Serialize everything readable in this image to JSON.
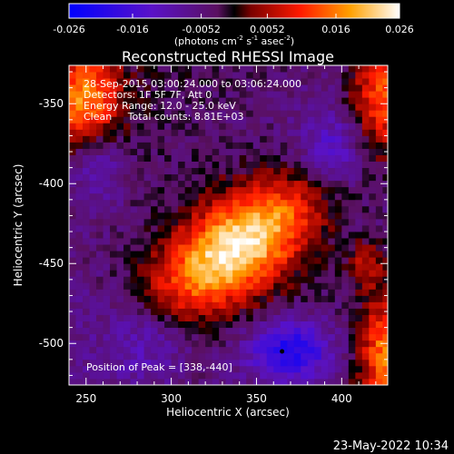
{
  "chart_data": {
    "type": "heatmap",
    "title": "Reconstructed RHESSI Image",
    "xlabel": "Heliocentric X (arcsec)",
    "ylabel": "Heliocentric Y (arcsec)",
    "xlim": [
      240,
      427
    ],
    "ylim": [
      -526,
      -326
    ],
    "x_ticks": [
      250,
      300,
      350,
      400
    ],
    "x_tick_labels": [
      "250",
      "300",
      "350",
      "400"
    ],
    "y_ticks": [
      -350,
      -400,
      -450,
      -500
    ],
    "y_tick_labels": [
      "-350",
      "-400",
      "-450",
      "-500"
    ],
    "colorbar": {
      "range": [
        -0.026,
        0.026
      ],
      "ticks": [
        -0.026,
        -0.016,
        -0.0052,
        0.0052,
        0.016,
        0.026
      ],
      "tick_labels": [
        "-0.026",
        "-0.016",
        "-0.0052",
        "0.0052",
        "0.016",
        "0.026"
      ],
      "unit_main": "(photons cm",
      "unit_exp1": "-2",
      "unit_mid": " s",
      "unit_exp2": "-1",
      "unit_end": " asec",
      "unit_exp3": "-2",
      "unit_close": ")"
    },
    "info_lines": [
      "28-Sep-2015 03:00:24.000 to 03:06:24.000",
      "Detectors: 1F 5F 7F, Att 0",
      "Energy Range: 12.0 - 25.0 keV",
      "Clean     Total counts: 8.81E+03"
    ],
    "peak_label": "Position of Peak = [338,-440]",
    "peak": [
      338,
      -440
    ],
    "source_sigma_major": 55,
    "source_sigma_minor": 25,
    "source_angle_deg": 38,
    "value_max": 0.026,
    "grid": false
  },
  "timestamp": "23-May-2022 10:34"
}
